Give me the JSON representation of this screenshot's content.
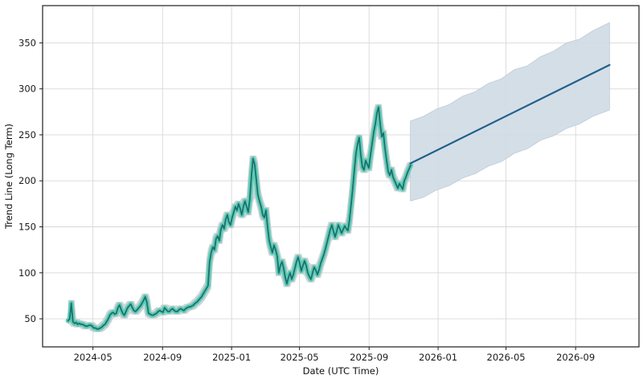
{
  "chart_data": {
    "type": "line",
    "title": "",
    "xlabel": "Date (UTC Time)",
    "ylabel": "Trend Line (Long Term)",
    "grid": true,
    "legend": "none",
    "x_axis": {
      "domain": [
        "2024-02-02",
        "2026-12-22"
      ],
      "ticks": [
        {
          "date": "2024-05-01",
          "label": "2024-05"
        },
        {
          "date": "2024-09-01",
          "label": "2024-09"
        },
        {
          "date": "2025-01-01",
          "label": "2025-01"
        },
        {
          "date": "2025-05-01",
          "label": "2025-05"
        },
        {
          "date": "2025-09-01",
          "label": "2025-09"
        },
        {
          "date": "2026-01-01",
          "label": "2026-01"
        },
        {
          "date": "2026-05-01",
          "label": "2026-05"
        },
        {
          "date": "2026-09-01",
          "label": "2026-09"
        }
      ]
    },
    "y_axis": {
      "domain": [
        19.5,
        390.5
      ],
      "ticks": [
        50,
        100,
        150,
        200,
        250,
        300,
        350
      ]
    },
    "colors": {
      "historical_line": "#1d6e70",
      "historical_glow": "#5ecdb3",
      "historical_halo": "#c4cbd1",
      "forecast_line": "#226089",
      "forecast_band": "#d0dbe5",
      "gridline": "#d8d8d8",
      "spine": "#1f1f1f"
    },
    "series": [
      {
        "name": "historical",
        "role": "observed-trend",
        "start_date": "2024-03-18",
        "step_days": 2.843,
        "range_delta": 3.5,
        "values": [
          48,
          50,
          67,
          47,
          45,
          46,
          44,
          45,
          44,
          44,
          43,
          42,
          42,
          43,
          43,
          42,
          40,
          40,
          39,
          39,
          40,
          41,
          43,
          44,
          47,
          50,
          54,
          56,
          57,
          55,
          56,
          62,
          65,
          60,
          56,
          54,
          58,
          62,
          64,
          66,
          62,
          59,
          58,
          60,
          62,
          64,
          67,
          70,
          74,
          68,
          56,
          55,
          54,
          54,
          55,
          56,
          58,
          59,
          58,
          57,
          62,
          60,
          58,
          58,
          60,
          61,
          59,
          58,
          58,
          60,
          61,
          60,
          59,
          61,
          62,
          63,
          63,
          64,
          65,
          67,
          68,
          70,
          72,
          74,
          77,
          80,
          83,
          86,
          112,
          122,
          128,
          125,
          137,
          140,
          135,
          147,
          152,
          148,
          158,
          163,
          155,
          152,
          160,
          166,
          172,
          168,
          175,
          170,
          163,
          172,
          178,
          172,
          166,
          180,
          205,
          224,
          218,
          202,
          185,
          178,
          172,
          163,
          160,
          168,
          150,
          135,
          128,
          122,
          130,
          125,
          118,
          100,
          108,
          112,
          105,
          95,
          88,
          95,
          100,
          93,
          98,
          105,
          112,
          117,
          110,
          102,
          108,
          113,
          108,
          100,
          96,
          93,
          100,
          106,
          103,
          98,
          103,
          110,
          115,
          120,
          126,
          133,
          140,
          147,
          152,
          145,
          139,
          145,
          152,
          148,
          143,
          147,
          151,
          148,
          146,
          158,
          175,
          192,
          212,
          230,
          240,
          247,
          228,
          215,
          212,
          222,
          218,
          214,
          228,
          240,
          253,
          262,
          274,
          280,
          262,
          248,
          252,
          235,
          222,
          210,
          206,
          212,
          204,
          200,
          196,
          192,
          197,
          194,
          191,
          200,
          204,
          209,
          213,
          217
        ]
      },
      {
        "name": "forecast",
        "role": "predicted-trend",
        "points": [
          [
            "2025-11-13",
            219
          ],
          [
            "2026-10-31",
            326
          ]
        ]
      },
      {
        "name": "forecast_range",
        "role": "confidence-band",
        "points_lo_hi": [
          [
            "2025-11-13",
            178,
            265
          ],
          [
            "2025-12-06",
            182,
            270
          ],
          [
            "2025-12-29",
            190,
            278
          ],
          [
            "2026-01-21",
            195,
            283
          ],
          [
            "2026-02-13",
            203,
            292
          ],
          [
            "2026-03-08",
            208,
            297
          ],
          [
            "2026-03-31",
            216,
            306
          ],
          [
            "2026-04-23",
            221,
            311
          ],
          [
            "2026-05-16",
            230,
            321
          ],
          [
            "2026-06-08",
            235,
            325
          ],
          [
            "2026-07-01",
            244,
            335
          ],
          [
            "2026-07-24",
            249,
            341
          ],
          [
            "2026-08-16",
            257,
            350
          ],
          [
            "2026-09-08",
            262,
            354
          ],
          [
            "2026-10-01",
            270,
            363
          ],
          [
            "2026-10-31",
            277,
            372
          ]
        ]
      }
    ]
  }
}
